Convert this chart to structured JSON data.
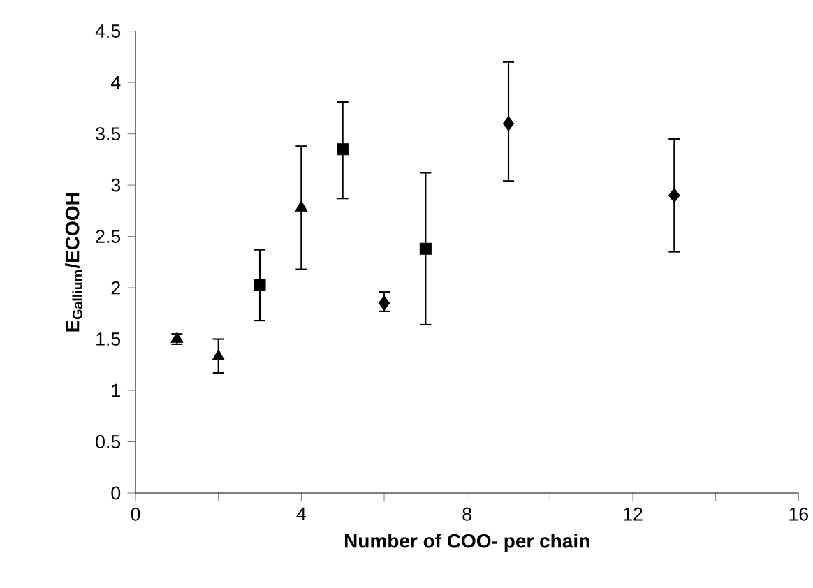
{
  "chart_data": {
    "type": "scatter",
    "xlabel": "**Number of COO- per chain**",
    "ylabel": "**E$_{Gallium}$/ECOOH**",
    "xlim": [
      0,
      16
    ],
    "ylim": [
      0,
      4.5
    ],
    "xticks": [
      0,
      {
        "value": 2,
        "label": null
      },
      4,
      {
        "value": 6,
        "label": null
      },
      8,
      {
        "value": 10,
        "label": null
      },
      12,
      {
        "value": 14,
        "label": null
      },
      16
    ],
    "yticks": [
      0,
      0.5,
      1,
      1.5,
      2,
      2.5,
      3,
      3.5,
      4,
      4.5
    ],
    "grid": false,
    "series": [
      {
        "color": "#000000",
        "marker": "triangle",
        "x": [
          1,
          2,
          4
        ],
        "values": [
          1.5,
          1.33,
          2.78
        ],
        "errors": [
          [
            1.45,
            1.55
          ],
          [
            1.17,
            1.5
          ],
          [
            2.18,
            3.38
          ]
        ]
      },
      {
        "color": "#000000",
        "marker": "square",
        "x": [
          3,
          5,
          7
        ],
        "values": [
          2.03,
          3.35,
          2.38
        ],
        "errors": [
          [
            1.68,
            2.37
          ],
          [
            2.87,
            3.81
          ],
          [
            1.64,
            3.12
          ]
        ]
      },
      {
        "color": "#000000",
        "marker": "diamond",
        "x": [
          6,
          9,
          13
        ],
        "values": [
          1.85,
          3.6,
          2.9
        ],
        "errors": [
          [
            1.77,
            1.96
          ],
          [
            3.04,
            4.2
          ],
          [
            2.35,
            3.45
          ]
        ]
      }
    ]
  }
}
